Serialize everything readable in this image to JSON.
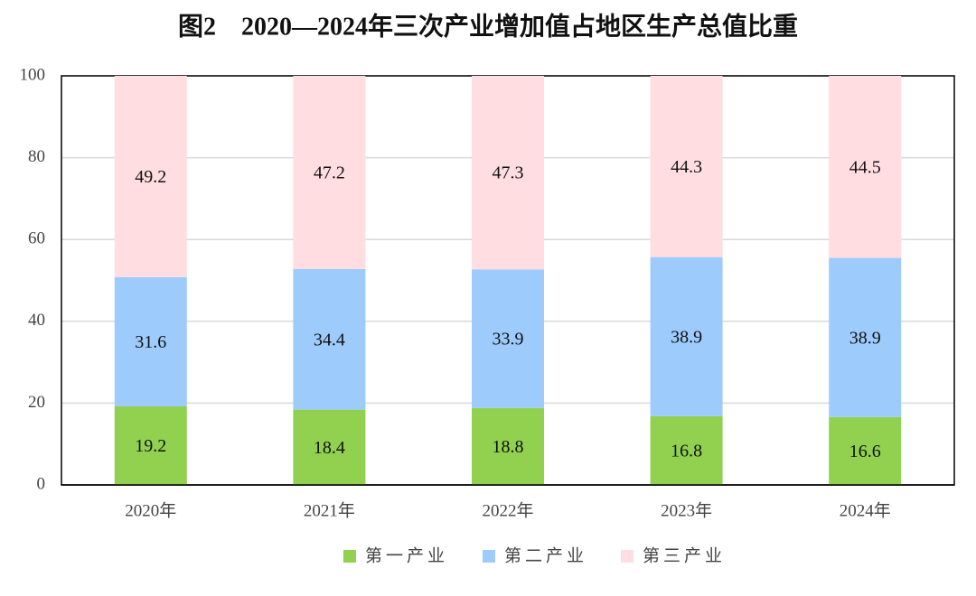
{
  "chart_data": {
    "type": "stacked_bar",
    "title": "图2　2020—2024年三次产业增加值占地区生产总值比重",
    "categories": [
      "2020年",
      "2021年",
      "2022年",
      "2023年",
      "2024年"
    ],
    "series": [
      {
        "name": "第一产业",
        "color": "#92d050",
        "values": [
          19.2,
          18.4,
          18.8,
          16.8,
          16.6
        ]
      },
      {
        "name": "第二产业",
        "color": "#9dccfc",
        "values": [
          31.6,
          34.4,
          33.9,
          38.9,
          38.9
        ]
      },
      {
        "name": "第三产业",
        "color": "#ffdde0",
        "values": [
          49.2,
          47.2,
          47.3,
          44.3,
          44.5
        ]
      }
    ],
    "ylim": [
      0,
      100
    ],
    "yticks": [
      0,
      20,
      40,
      60,
      80,
      100
    ],
    "grid": true,
    "legend": "bottom"
  }
}
